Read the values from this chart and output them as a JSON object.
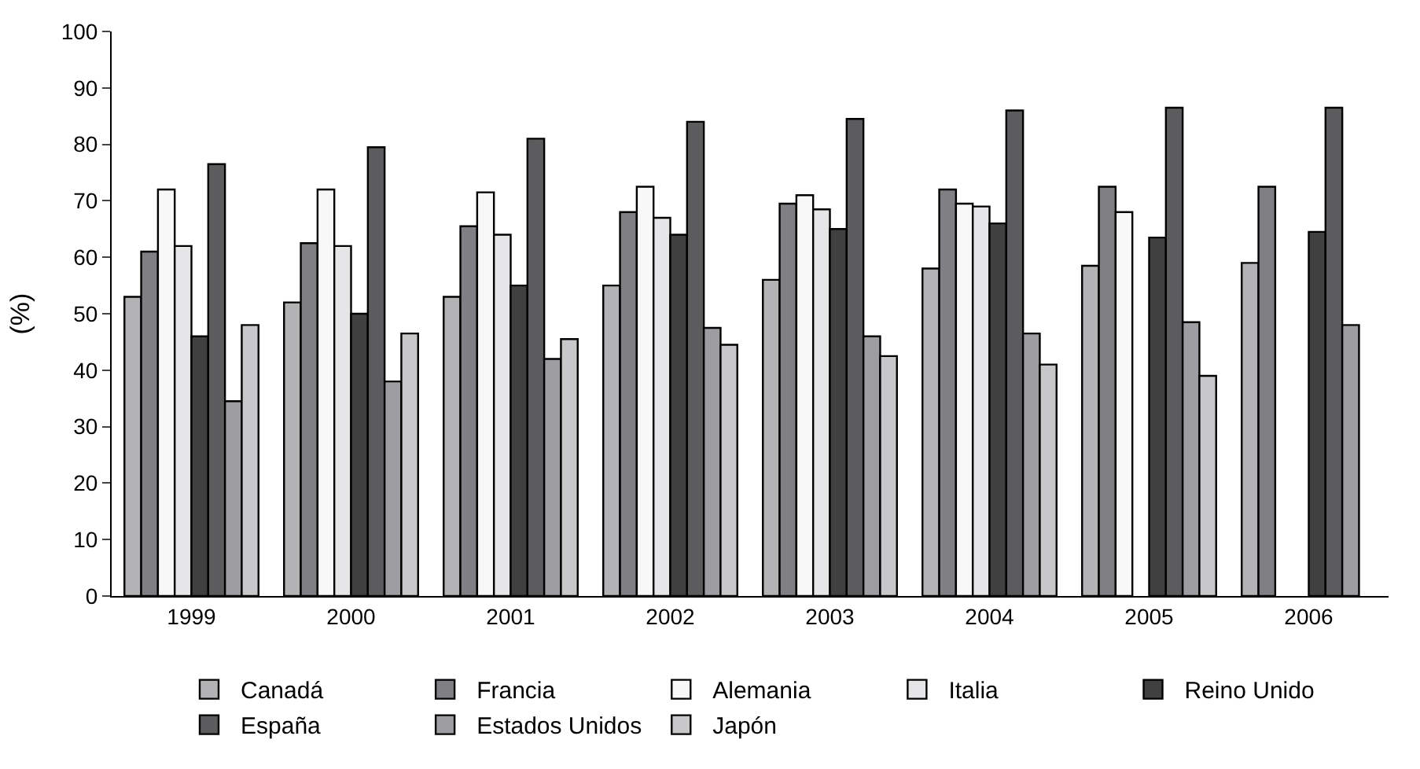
{
  "chart_data": {
    "type": "bar",
    "ylabel": "(%)",
    "categories": [
      "1999",
      "2000",
      "2001",
      "2002",
      "2003",
      "2004",
      "2005",
      "2006"
    ],
    "series": [
      {
        "name": "Canadá",
        "color": "#b3b3b6",
        "values": [
          53,
          52,
          53,
          55,
          56,
          58,
          58.5,
          59
        ]
      },
      {
        "name": "Francia",
        "color": "#808084",
        "values": [
          61,
          62.5,
          65.5,
          68,
          69.5,
          72,
          72.5,
          72.5
        ]
      },
      {
        "name": "Alemania",
        "color": "#f8f8f8",
        "values": [
          72,
          72,
          71.5,
          72.5,
          71,
          69.5,
          68,
          null
        ]
      },
      {
        "name": "Italia",
        "color": "#e6e6e8",
        "values": [
          62,
          62,
          64,
          67,
          68.5,
          69,
          null,
          null
        ]
      },
      {
        "name": "Reino Unido",
        "color": "#404040",
        "values": [
          46,
          50,
          55,
          64,
          65,
          66,
          63.5,
          64.5
        ]
      },
      {
        "name": "España",
        "color": "#5c5c5e",
        "values": [
          76.5,
          79.5,
          81,
          84,
          84.5,
          86,
          86.5,
          86.5
        ]
      },
      {
        "name": "Estados Unidos",
        "color": "#9e9ea2",
        "values": [
          34.5,
          38,
          42,
          47.5,
          46,
          46.5,
          48.5,
          48
        ]
      },
      {
        "name": "Japón",
        "color": "#c8c8ca",
        "values": [
          48,
          46.5,
          45.5,
          44.5,
          42.5,
          41,
          39,
          null
        ]
      }
    ],
    "ylim": [
      0,
      100
    ],
    "yticks": [
      0,
      10,
      20,
      30,
      40,
      50,
      60,
      70,
      80,
      90,
      100
    ],
    "legend": "bottom",
    "grid": false
  }
}
